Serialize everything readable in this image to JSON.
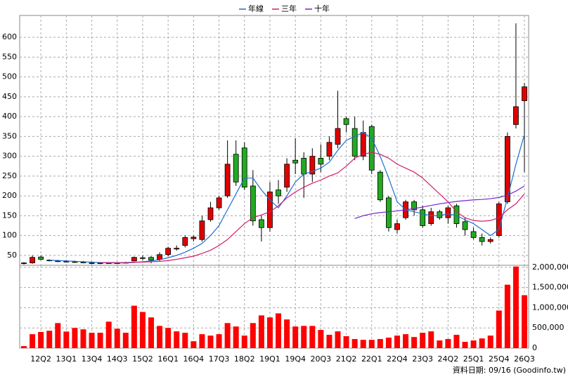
{
  "chart_data": {
    "type": "candlestick",
    "legend_position": "top",
    "grid": true,
    "up_color": "#e00000",
    "down_color": "#22aa22",
    "categories": [
      null,
      null,
      "12Q2",
      null,
      null,
      "13Q1",
      null,
      null,
      "13Q4",
      null,
      null,
      "14Q3",
      null,
      null,
      "15Q2",
      null,
      null,
      "16Q1",
      null,
      null,
      "16Q4",
      null,
      null,
      "17Q3",
      null,
      null,
      "18Q2",
      null,
      null,
      "19Q1",
      null,
      null,
      "19Q4",
      null,
      null,
      "20Q3",
      null,
      null,
      "21Q2",
      null,
      null,
      "22Q1",
      null,
      null,
      "22Q4",
      null,
      null,
      "23Q3",
      null,
      null,
      "24Q2",
      null,
      null,
      "25Q1",
      null,
      null,
      "25Q4",
      null,
      null,
      "26Q3"
    ],
    "open": [
      30,
      31,
      46,
      38,
      36,
      35,
      34,
      33,
      31,
      30,
      31,
      31,
      31,
      36,
      44,
      45,
      40,
      52,
      66,
      75,
      92,
      90,
      140,
      170,
      200,
      305,
      321,
      225,
      140,
      120,
      215,
      222,
      290,
      295,
      255,
      295,
      300,
      330,
      395,
      370,
      300,
      375,
      260,
      195,
      115,
      145,
      185,
      165,
      130,
      160,
      145,
      175,
      135,
      110,
      95,
      85,
      100,
      185,
      380,
      440
    ],
    "high": [
      33,
      50,
      50,
      40,
      39,
      38,
      37,
      36,
      34,
      33,
      33,
      33,
      34,
      47,
      50,
      48,
      58,
      72,
      75,
      100,
      100,
      150,
      185,
      200,
      340,
      340,
      335,
      265,
      150,
      235,
      240,
      295,
      345,
      310,
      320,
      330,
      350,
      465,
      400,
      400,
      390,
      380,
      265,
      200,
      140,
      190,
      190,
      175,
      170,
      165,
      175,
      180,
      145,
      120,
      105,
      95,
      185,
      360,
      635,
      485
    ],
    "low": [
      27,
      29,
      38,
      35,
      33,
      32,
      31,
      30,
      28,
      28,
      29,
      29,
      30,
      35,
      38,
      30,
      36,
      48,
      62,
      70,
      85,
      85,
      135,
      165,
      195,
      225,
      215,
      125,
      85,
      110,
      180,
      210,
      255,
      195,
      235,
      260,
      290,
      320,
      360,
      290,
      290,
      255,
      185,
      110,
      105,
      140,
      150,
      120,
      125,
      140,
      130,
      120,
      100,
      90,
      75,
      80,
      95,
      180,
      370,
      260
    ],
    "close": [
      31,
      45,
      40,
      37,
      35,
      34,
      33,
      32,
      30,
      31,
      31,
      31,
      32,
      45,
      43,
      38,
      52,
      68,
      68,
      95,
      96,
      137,
      170,
      195,
      280,
      235,
      222,
      137,
      120,
      210,
      200,
      280,
      283,
      255,
      300,
      280,
      335,
      370,
      380,
      300,
      360,
      265,
      190,
      120,
      130,
      185,
      165,
      125,
      160,
      145,
      170,
      130,
      115,
      95,
      85,
      90,
      180,
      350,
      425,
      475
    ],
    "lines": [
      {
        "name": "年線",
        "color": "#1f6fd0",
        "values": [
          null,
          null,
          null,
          38,
          37,
          36,
          35,
          34,
          33,
          32,
          31,
          31,
          31,
          32,
          34,
          36,
          39,
          44,
          50,
          58,
          68,
          80,
          100,
          125,
          165,
          205,
          245,
          245,
          215,
          190,
          170,
          200,
          235,
          255,
          262,
          270,
          285,
          315,
          340,
          350,
          360,
          345,
          300,
          245,
          185,
          165,
          160,
          155,
          150,
          150,
          155,
          150,
          140,
          130,
          115,
          100,
          115,
          195,
          280,
          355
        ]
      },
      {
        "name": "三年",
        "color": "#d0206a",
        "values": [
          null,
          null,
          null,
          null,
          null,
          null,
          null,
          null,
          null,
          32,
          32,
          32,
          32,
          33,
          33,
          34,
          35,
          37,
          40,
          44,
          48,
          55,
          63,
          75,
          90,
          110,
          130,
          145,
          152,
          160,
          175,
          195,
          210,
          222,
          232,
          240,
          250,
          258,
          275,
          295,
          305,
          310,
          305,
          295,
          280,
          270,
          260,
          245,
          225,
          205,
          185,
          160,
          145,
          138,
          136,
          138,
          145,
          165,
          180,
          205
        ]
      },
      {
        "name": "十年",
        "color": "#7a22c8",
        "values": [
          null,
          null,
          null,
          null,
          null,
          null,
          null,
          null,
          null,
          null,
          null,
          null,
          null,
          null,
          null,
          null,
          null,
          null,
          null,
          null,
          null,
          null,
          null,
          null,
          null,
          null,
          null,
          null,
          null,
          null,
          null,
          null,
          null,
          null,
          null,
          null,
          null,
          null,
          null,
          143,
          150,
          155,
          158,
          160,
          162,
          165,
          168,
          172,
          176,
          180,
          183,
          186,
          188,
          190,
          191,
          193,
          196,
          202,
          212,
          225
        ]
      }
    ],
    "volume": {
      "color": "#ff0000",
      "values": [
        50000,
        345000,
        400000,
        430000,
        620000,
        410000,
        500000,
        465000,
        380000,
        380000,
        655000,
        480000,
        380000,
        1050000,
        895000,
        760000,
        550000,
        500000,
        415000,
        380000,
        170000,
        345000,
        310000,
        345000,
        620000,
        535000,
        310000,
        620000,
        810000,
        760000,
        860000,
        710000,
        535000,
        550000,
        550000,
        450000,
        330000,
        415000,
        295000,
        225000,
        205000,
        205000,
        225000,
        260000,
        310000,
        345000,
        275000,
        380000,
        415000,
        190000,
        225000,
        330000,
        155000,
        190000,
        240000,
        310000,
        930000,
        1570000,
        2020000,
        1310000
      ]
    },
    "ylim": [
      25,
      655
    ],
    "yticks": [
      50,
      100,
      150,
      200,
      250,
      300,
      350,
      400,
      450,
      500,
      550,
      600
    ],
    "y2lim": [
      0,
      2050000
    ],
    "y2ticks": [
      0,
      {
        "value": 500000,
        "label": "500,000"
      },
      {
        "value": 1000000,
        "label": "1,000,000"
      },
      {
        "value": 1500000,
        "label": "1,500,000"
      },
      {
        "value": 2000000,
        "label": "2,000,000"
      }
    ],
    "footnote": "資料日期: 09/16 (Goodinfo.tw)"
  }
}
